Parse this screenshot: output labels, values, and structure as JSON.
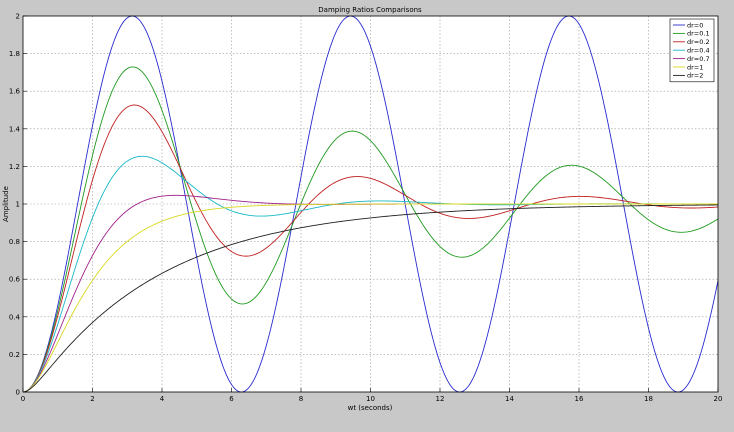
{
  "chart_data": {
    "type": "line",
    "title": "Damping Ratios Comparisons",
    "xlabel": "wt (seconds)",
    "ylabel": "Amplitude",
    "xlim": [
      0,
      20
    ],
    "ylim": [
      0,
      2
    ],
    "xticks": [
      0,
      2,
      4,
      6,
      8,
      10,
      12,
      14,
      16,
      18,
      20
    ],
    "yticks": [
      0,
      0.2,
      0.4,
      0.6,
      0.8,
      1,
      1.2,
      1.4,
      1.6,
      1.8,
      2
    ],
    "grid": true,
    "legend_position": "top-right",
    "model": "unit step response of a second-order system with natural frequency 1 rad/s",
    "series": [
      {
        "name": "dr=0",
        "zeta": 0,
        "color": "#2a2ad0",
        "peak": {
          "x": 3.14,
          "y": 2.0
        },
        "min": {
          "x": 6.28,
          "y": 0.0
        }
      },
      {
        "name": "dr=0.1",
        "zeta": 0.1,
        "color": "#1f9a1f",
        "peak": {
          "x": 3.16,
          "y": 1.73
        },
        "min": {
          "x": 6.31,
          "y": 0.47
        }
      },
      {
        "name": "dr=0.2",
        "zeta": 0.2,
        "color": "#c02020",
        "peak": {
          "x": 3.21,
          "y": 1.53
        },
        "min": {
          "x": 6.41,
          "y": 0.72
        }
      },
      {
        "name": "dr=0.4",
        "zeta": 0.4,
        "color": "#18b8c8",
        "peak": {
          "x": 3.43,
          "y": 1.25
        },
        "min": {
          "x": 6.86,
          "y": 0.94
        }
      },
      {
        "name": "dr=0.7",
        "zeta": 0.7,
        "color": "#a0208a",
        "peak": {
          "x": 4.4,
          "y": 1.05
        }
      },
      {
        "name": "dr=1",
        "zeta": 1,
        "color": "#d8d820"
      },
      {
        "name": "dr=2",
        "zeta": 2,
        "color": "#202020"
      }
    ]
  }
}
